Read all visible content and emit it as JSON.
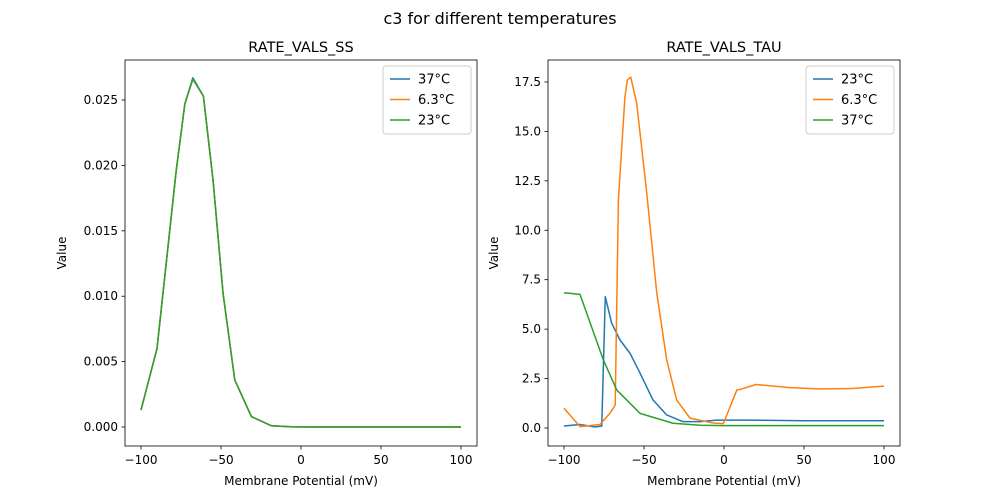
{
  "figure_title": "c3 for different temperatures",
  "colors": {
    "c0": "#1f77b4",
    "c1": "#ff7f0e",
    "c2": "#2ca02c"
  },
  "chart_data": [
    {
      "type": "line",
      "title": "RATE_VALS_SS",
      "xlabel": "Membrane Potential (mV)",
      "ylabel": "Value",
      "xlim": [
        -110,
        110
      ],
      "ylim": [
        -0.00145,
        0.02806
      ],
      "xticks": [
        -100,
        -50,
        0,
        50,
        100
      ],
      "xtick_labels": [
        "−100",
        "−50",
        "0",
        "50",
        "100"
      ],
      "yticks": [
        0,
        0.005,
        0.01,
        0.015,
        0.02,
        0.025
      ],
      "ytick_labels": [
        "0.000",
        "0.005",
        "0.010",
        "0.015",
        "0.020",
        "0.025"
      ],
      "legend_position": "top-right",
      "series": [
        {
          "name": "37°C",
          "color": "#1f77b4",
          "x": [
            -100,
            -90,
            -84,
            -78,
            -72.6,
            -67.6,
            -61,
            -55,
            -48.7,
            -41.4,
            -31,
            -18.6,
            -5,
            10,
            50,
            100
          ],
          "y": [
            0.0013,
            0.006,
            0.0128,
            0.0196,
            0.0247,
            0.0267,
            0.0253,
            0.0189,
            0.0102,
            0.0036,
            0.0008,
            0.0001,
            1e-05,
            0,
            0,
            0
          ]
        },
        {
          "name": "6.3°C",
          "color": "#ff7f0e",
          "x": [
            -100,
            -90,
            -84,
            -78,
            -72.6,
            -67.6,
            -61,
            -55,
            -48.7,
            -41.4,
            -31,
            -18.6,
            -5,
            10,
            50,
            100
          ],
          "y": [
            0.0013,
            0.006,
            0.0128,
            0.0196,
            0.0247,
            0.0266,
            0.0253,
            0.0189,
            0.0102,
            0.0036,
            0.0008,
            0.0001,
            1e-05,
            0,
            0,
            0
          ]
        },
        {
          "name": "23°C",
          "color": "#2ca02c",
          "x": [
            -100,
            -90,
            -84,
            -78,
            -72.6,
            -67.6,
            -61,
            -55,
            -48.7,
            -41.4,
            -31,
            -18.6,
            -5,
            10,
            50,
            100
          ],
          "y": [
            0.0013,
            0.006,
            0.0128,
            0.0196,
            0.0247,
            0.0266,
            0.0253,
            0.0189,
            0.0102,
            0.0036,
            0.0008,
            0.0001,
            1e-05,
            0,
            0,
            0
          ]
        }
      ]
    },
    {
      "type": "line",
      "title": "RATE_VALS_TAU",
      "xlabel": "Membrane Potential (mV)",
      "ylabel": "Value",
      "xlim": [
        -110,
        110
      ],
      "ylim": [
        -0.91,
        18.61
      ],
      "xticks": [
        -100,
        -50,
        0,
        50,
        100
      ],
      "xtick_labels": [
        "−100",
        "−50",
        "0",
        "50",
        "100"
      ],
      "yticks": [
        0,
        2.5,
        5,
        7.5,
        10,
        12.5,
        15,
        17.5
      ],
      "ytick_labels": [
        "0.0",
        "2.5",
        "5.0",
        "7.5",
        "10.0",
        "12.5",
        "15.0",
        "17.5"
      ],
      "legend_position": "top-right",
      "series": [
        {
          "name": "23°C",
          "color": "#1f77b4",
          "x": [
            -100,
            -90,
            -80.6,
            -76.4,
            -74.2,
            -70.2,
            -65,
            -58.75,
            -52.5,
            -44.4,
            -35.8,
            -25.6,
            -15,
            -4.6,
            10,
            50,
            100
          ],
          "y": [
            0.1,
            0.18,
            0.05,
            0.1,
            6.64,
            5.3,
            4.45,
            3.78,
            2.78,
            1.42,
            0.66,
            0.32,
            0.32,
            0.4,
            0.4,
            0.37,
            0.37
          ]
        },
        {
          "name": "6.3°C",
          "color": "#ff7f0e",
          "x": [
            -100,
            -90,
            -77.5,
            -71.25,
            -68,
            -66,
            -61.9,
            -60.4,
            -58.3,
            -54.6,
            -48.3,
            -42,
            -35.8,
            -29.6,
            -21.25,
            -6.9,
            -0.4,
            8,
            10,
            20,
            40,
            60,
            80,
            100
          ],
          "y": [
            1.0,
            0.07,
            0.18,
            0.75,
            1.16,
            11.53,
            16.76,
            17.6,
            17.74,
            16.44,
            11.9,
            6.82,
            3.44,
            1.42,
            0.5,
            0.25,
            0.22,
            1.92,
            1.95,
            2.2,
            2.05,
            1.97,
            2.0,
            2.12
          ]
        },
        {
          "name": "37°C",
          "color": "#2ca02c",
          "x": [
            -100,
            -90,
            -75.4,
            -67,
            -52.5,
            -31.9,
            -15,
            0,
            50,
            100
          ],
          "y": [
            6.84,
            6.76,
            3.44,
            1.92,
            0.74,
            0.24,
            0.14,
            0.12,
            0.12,
            0.12
          ]
        }
      ]
    }
  ]
}
